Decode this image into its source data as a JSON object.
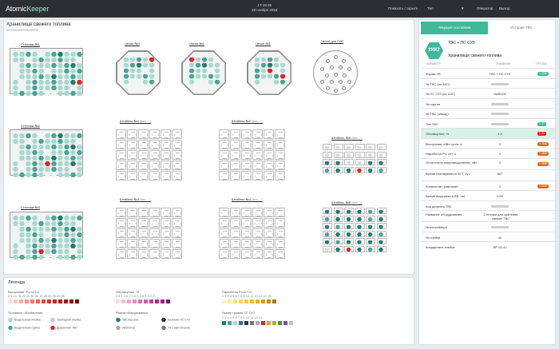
{
  "header": {
    "logo_a": "Atomic",
    "logo_b": "Keeper",
    "time": "17:18:36",
    "date": "19 ноября 2018",
    "show_hide": "Показать / скрыть",
    "dropdown": "Тип",
    "user": "Оператор",
    "logout": "Выход"
  },
  "main": {
    "title": "Хранилище свежего топлива"
  },
  "racks": {
    "s1": "Стеллаж №1",
    "s2": "Стеллаж №2",
    "s3": "Стеллаж №3",
    "c1": "Чехол №3",
    "c2": "Чехол №2",
    "c3": "Чехол №1",
    "cps": "Чехол для ПЭГ"
  },
  "stacks": {
    "s1": "Штабель №1",
    "s2": "Штабель №2",
    "s3": "Штабель №3",
    "s4": "Штабель №4",
    "s5": "Штабель №5",
    "s6": "Штабель №6",
    "w1": "(",
    "w2": "вес ...)"
  },
  "legend": {
    "title": "Легенда",
    "h1": "Выгорание, PU кг/т U",
    "n1": "0 5 10 15 20 25 30 35 40 45 50 55 60 65",
    "h2": "Обогащение, %",
    "n2": "0.5 1 1.5 2 2.5 3 3.5 4 4.5 5",
    "h3": "Наработка Pu кг/т U",
    "n3": "1 2 3 4 5 6 7 8 9 10 11 12 13 14 15",
    "h4": "Условные обозначения",
    "i1": "Выделенная ячейка",
    "i2": "Свободная ячейка",
    "i3": "Выделенная группа",
    "i4": "Дефектная ТВС",
    "h5": "Режим оборудования",
    "i5": "ТВС/кассета",
    "i6": "Наличие ПС СУЗ",
    "i7": "Имитатор",
    "i8": "УЗ с имитатором",
    "h6": "Номер группы ОГ СУЗ",
    "n6": "1 2 3 4 5 6 7 8 9 10 11 12 13"
  },
  "panel": {
    "tab_current": "Текущее состояние",
    "tab_history": "История ТВС",
    "badge": "2ИК2",
    "name": "ТВС + ПС СУЗ",
    "place": "Хранилище свежего топлива",
    "col_param": "ПАРАМЕТР",
    "col_value": "ЗНАЧЕНИЕ",
    "col_group": "ГРУППА",
    "rows": [
      {
        "k": "Форма УБ",
        "v": "ТВС + ПС СУЗ",
        "g": "+ 2ОБ"
      },
      {
        "k": "№ ТВС (по АЗС)",
        "v": ""
      },
      {
        "k": "№ ПС СУЗ (по АЗС)",
        "v": "№99106"
      },
      {
        "k": "№ партии",
        "v": ""
      },
      {
        "k": "№ ТВС (завод.)",
        "v": ""
      },
      {
        "k": "Тип ТВС",
        "v": "",
        "g": "+ 27"
      },
      {
        "k": "Обогащение, %",
        "v": "4.9",
        "g": "+ 21"
      },
      {
        "k": "Выгорание, МВт·сут/кг U",
        "v": "0",
        "g": "+ 2МБ"
      },
      {
        "k": "Наработка Pu, кг/т U",
        "v": "0",
        "g": "+ 2МБ"
      },
      {
        "k": "Остаточное энерговыделение, кВт",
        "v": "0",
        "g": "+ 2МБ"
      },
      {
        "k": "Время нахождения в ХСТ, сут",
        "v": "687"
      },
      {
        "k": "Количество кампаний",
        "v": "0",
        "g": "+ 2МБ"
      },
      {
        "k": "Время выдержки в БВ, лет",
        "v": "0.00"
      },
      {
        "k": "Код дефекта ТВС",
        "v": ""
      },
      {
        "k": "Название оборудования",
        "v": "Стеллаж для хранения свежих ТВС"
      },
      {
        "k": "№ контейнера",
        "v": ""
      },
      {
        "k": "№ ячейки",
        "v": "42"
      },
      {
        "k": "Координаты ячейки",
        "v": "ЯР-02-42"
      }
    ]
  }
}
